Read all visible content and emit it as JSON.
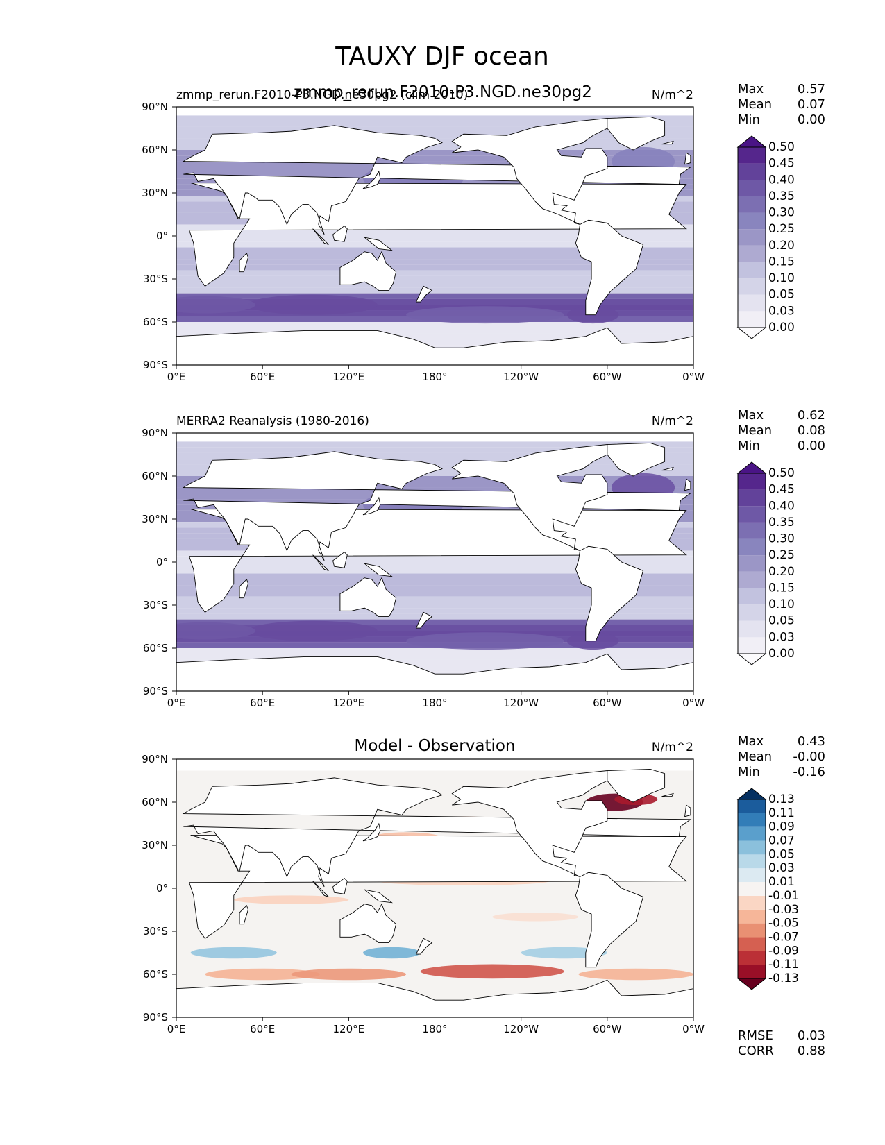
{
  "title": "TAUXY DJF ocean",
  "colors": {
    "seq": [
      "#fcfbfd",
      "#f1eff6",
      "#e4e3f0",
      "#d4d4e8",
      "#c2c2df",
      "#aeaad1",
      "#9b96c6",
      "#8985be",
      "#7c6fb2",
      "#6e58a6",
      "#62429a",
      "#55268c",
      "#4a1486"
    ],
    "div": [
      "#67001f",
      "#a11228",
      "#c63c3c",
      "#e07b61",
      "#f4ab8b",
      "#fbd1bc",
      "#f7f4f2",
      "#d8e8f2",
      "#add3e6",
      "#72b1d5",
      "#3a88bf",
      "#1f63a6",
      "#053061"
    ]
  },
  "chart_data": [
    {
      "type": "contour-map",
      "subtitle": "zmmp_rerun.F2010-P3.NGD.ne30pg2 (clim 2010)",
      "overlay_title": "zmmp_rerun.F2010-P3.NGD.ne30pg2",
      "units": "N/m^2",
      "stats": [
        {
          "label": "Max",
          "value": "0.57"
        },
        {
          "label": "Mean",
          "value": "0.07"
        },
        {
          "label": "Min",
          "value": "0.00"
        }
      ],
      "colorbar": {
        "palette": "seq",
        "extend": "both",
        "levels": [
          "0.00",
          "0.03",
          "0.05",
          "0.10",
          "0.15",
          "0.20",
          "0.25",
          "0.30",
          "0.35",
          "0.40",
          "0.45",
          "0.50"
        ]
      },
      "xticks": [
        "0°E",
        "60°E",
        "120°E",
        "180°",
        "120°W",
        "60°W",
        "0°W"
      ],
      "yticks": [
        "90°N",
        "60°N",
        "30°N",
        "0°",
        "30°S",
        "60°S",
        "90°S"
      ],
      "xlim": [
        0,
        360
      ],
      "ylim": [
        -90,
        90
      ]
    },
    {
      "type": "contour-map",
      "subtitle": "MERRA2 Reanalysis (1980-2016)",
      "units": "N/m^2",
      "stats": [
        {
          "label": "Max",
          "value": "0.62"
        },
        {
          "label": "Mean",
          "value": "0.08"
        },
        {
          "label": "Min",
          "value": "0.00"
        }
      ],
      "colorbar": {
        "palette": "seq",
        "extend": "both",
        "levels": [
          "0.00",
          "0.03",
          "0.05",
          "0.10",
          "0.15",
          "0.20",
          "0.25",
          "0.30",
          "0.35",
          "0.40",
          "0.45",
          "0.50"
        ]
      },
      "xticks": [
        "0°E",
        "60°E",
        "120°E",
        "180°",
        "120°W",
        "60°W",
        "0°W"
      ],
      "yticks": [
        "90°N",
        "60°N",
        "30°N",
        "0°",
        "30°S",
        "60°S",
        "90°S"
      ],
      "xlim": [
        0,
        360
      ],
      "ylim": [
        -90,
        90
      ]
    },
    {
      "type": "contour-map",
      "subtitle": "Model - Observation",
      "units": "N/m^2",
      "stats": [
        {
          "label": "Max",
          "value": "0.43"
        },
        {
          "label": "Mean",
          "value": "-0.00"
        },
        {
          "label": "Min",
          "value": "-0.16"
        }
      ],
      "colorbar": {
        "palette": "div",
        "extend": "both",
        "levels": [
          "-0.13",
          "-0.11",
          "-0.09",
          "-0.07",
          "-0.05",
          "-0.03",
          "-0.01",
          "0.01",
          "0.03",
          "0.05",
          "0.07",
          "0.09",
          "0.11",
          "0.13"
        ]
      },
      "xticks": [
        "0°E",
        "60°E",
        "120°E",
        "180°",
        "120°W",
        "60°W",
        "0°W"
      ],
      "yticks": [
        "90°N",
        "60°N",
        "30°N",
        "0°",
        "30°S",
        "60°S",
        "90°S"
      ],
      "xlim": [
        0,
        360
      ],
      "ylim": [
        -90,
        90
      ],
      "metrics": [
        {
          "label": "RMSE",
          "value": "0.03"
        },
        {
          "label": "CORR",
          "value": "0.88"
        }
      ]
    }
  ]
}
